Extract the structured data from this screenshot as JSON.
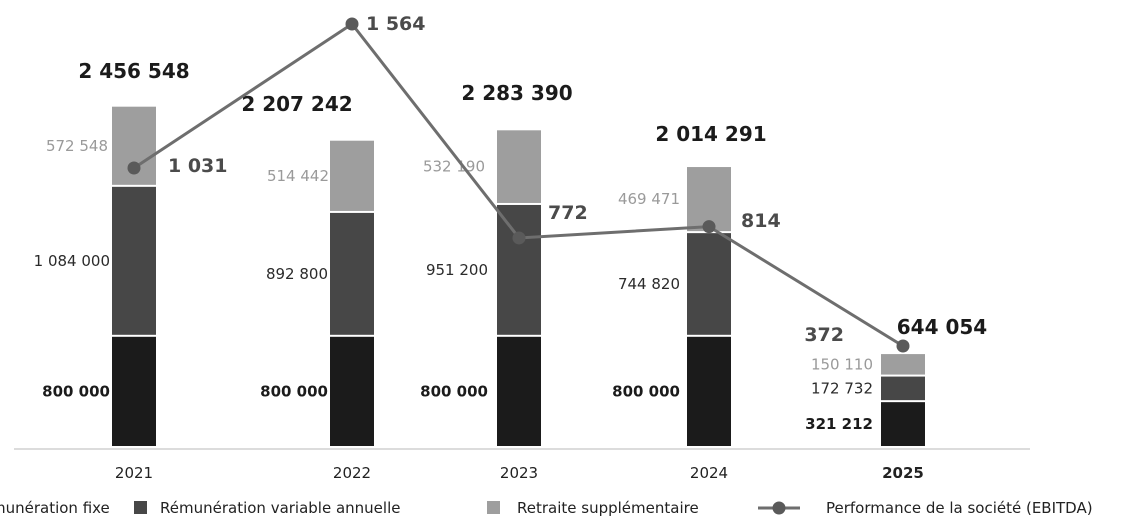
{
  "chart_data": {
    "type": "bar",
    "stacked": true,
    "categories": [
      "2021",
      "2022",
      "2023",
      "2024",
      "2025"
    ],
    "highlight_category": "2025",
    "series": [
      {
        "name": "Rémunération fixe",
        "color": "#1b1b1b",
        "label_color": "#1b1b1b",
        "label_weight": "bold",
        "values": [
          800000,
          800000,
          800000,
          800000,
          321212
        ],
        "labels": [
          "800 000",
          "800 000",
          "800 000",
          "800 000",
          "321 212"
        ]
      },
      {
        "name": "Rémunération variable annuelle",
        "color": "#474747",
        "label_color": "#2b2b2b",
        "label_weight": "normal",
        "values": [
          1084000,
          892800,
          951200,
          744820,
          172732
        ],
        "labels": [
          "1 084 000",
          "892 800",
          "951 200",
          "744 820",
          "172 732"
        ]
      },
      {
        "name": "Retraite supplémentaire",
        "color": "#9e9e9e",
        "label_color": "#9a9a9a",
        "label_weight": "normal",
        "values": [
          572548,
          514442,
          532190,
          469471,
          150110
        ],
        "labels": [
          "572 548",
          "514 442",
          "532 190",
          "469 471",
          "150 110"
        ]
      }
    ],
    "totals": [
      "2 456 548",
      "2 207 242",
      "2 283 390",
      "2 014 291",
      "644 054"
    ],
    "line_series": {
      "name": "Performance de la société (EBITDA)",
      "color": "#6e6e6e",
      "values": [
        1031,
        1564,
        772,
        814,
        372
      ],
      "labels": [
        "1 031",
        "1 564",
        "772",
        "814",
        "372"
      ],
      "ylim": [
        0,
        1700
      ]
    },
    "ylim": [
      0,
      2700000
    ],
    "legend_position": "bottom",
    "grid": false
  }
}
